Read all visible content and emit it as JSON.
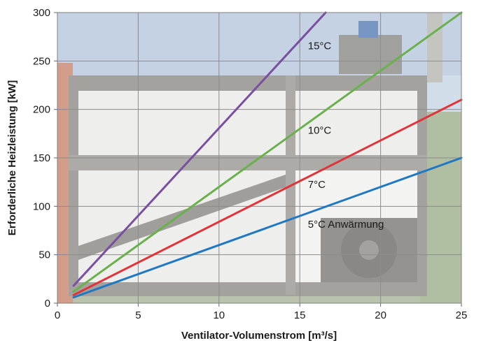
{
  "chart_data": {
    "type": "line",
    "xlabel": "Ventilator-Volumenstrom [m³/s]",
    "ylabel": "Erforderliche Heizleistung [kW]",
    "xlim": [
      0,
      25
    ],
    "ylim": [
      0,
      300
    ],
    "xticks": [
      0,
      5,
      10,
      15,
      20,
      25
    ],
    "yticks": [
      0,
      50,
      100,
      150,
      200,
      250,
      300
    ],
    "grid": true,
    "background": "photo of a container dryer behind the plot area",
    "series": [
      {
        "name": "15°C",
        "color": "#7a4ea0",
        "points": [
          [
            1,
            18
          ],
          [
            16.6,
            300
          ]
        ]
      },
      {
        "name": "10°C",
        "color": "#6ab04c",
        "points": [
          [
            1,
            12
          ],
          [
            25,
            300
          ]
        ]
      },
      {
        "name": "7°C",
        "color": "#e0343a",
        "points": [
          [
            1,
            8.4
          ],
          [
            25,
            210
          ]
        ]
      },
      {
        "name": "5°C Anwärmung",
        "color": "#1f78c1",
        "points": [
          [
            1,
            6
          ],
          [
            25,
            150
          ]
        ]
      }
    ],
    "series_labels": [
      {
        "text": "15°C",
        "at": [
          15.5,
          262
        ]
      },
      {
        "text": "10°C",
        "at": [
          15.5,
          175
        ]
      },
      {
        "text": "7°C",
        "at": [
          15.5,
          119
        ]
      },
      {
        "text": "5°C Anwärmung",
        "at": [
          15.5,
          78
        ]
      }
    ]
  }
}
